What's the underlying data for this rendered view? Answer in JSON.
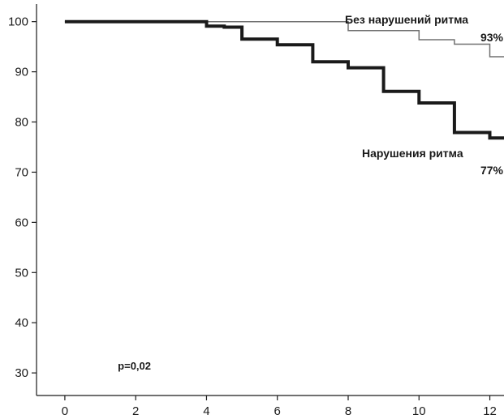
{
  "chart_data": {
    "type": "line",
    "title": "",
    "xlabel": "",
    "ylabel": "",
    "xlim": [
      -0.8,
      12.4
    ],
    "ylim": [
      25.5,
      103.5
    ],
    "grid": false,
    "x_ticks": [
      0,
      2,
      4,
      6,
      8,
      10,
      12
    ],
    "y_ticks": [
      30,
      40,
      50,
      60,
      70,
      80,
      90,
      100
    ],
    "series": [
      {
        "name": "Без нарушений ритма",
        "end_label": "93%",
        "color": "#707070",
        "line_style": "thin",
        "x": [
          0,
          8,
          8,
          10,
          10,
          11,
          11,
          12,
          12,
          12.4
        ],
        "y": [
          100,
          100,
          98.2,
          98.2,
          96.4,
          96.4,
          95.5,
          95.5,
          93,
          93
        ]
      },
      {
        "name": "Нарушения ритма",
        "end_label": "77%",
        "color": "#1a1a1a",
        "line_style": "thick",
        "x": [
          0,
          4,
          4,
          4.5,
          4.5,
          5,
          5,
          6,
          6,
          7,
          7,
          8,
          8,
          9,
          9,
          10,
          10,
          11,
          11,
          12,
          12,
          12.4
        ],
        "y": [
          100,
          100,
          99.1,
          99.1,
          98.9,
          98.9,
          96.5,
          96.5,
          95.4,
          95.4,
          92,
          92,
          90.8,
          90.8,
          86.1,
          86.1,
          83.8,
          83.8,
          77.9,
          77.9,
          76.8,
          76.8
        ]
      }
    ],
    "annotations": [
      {
        "text": "p=0,02",
        "x": 2,
        "y": 31.5
      }
    ]
  }
}
